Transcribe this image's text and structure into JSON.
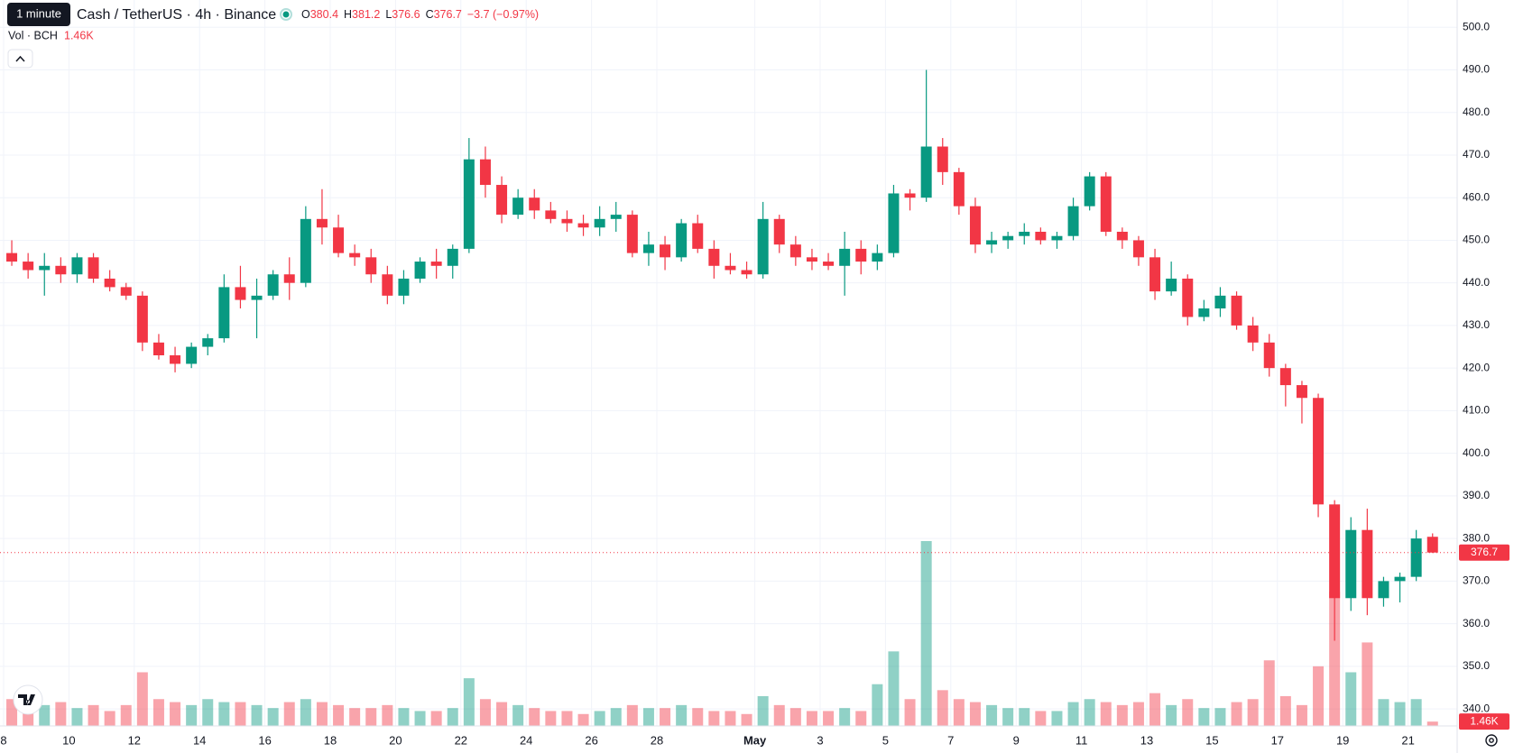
{
  "header": {
    "tooltip": "1 minute",
    "symbol": "Cash / TetherUS · 4h · Binance",
    "ohlc_labels": [
      "O",
      "H",
      "L",
      "C"
    ],
    "change": "−3.7 (−0.97%)",
    "volume_title": "Vol · BCH"
  },
  "chart_data": {
    "type": "candlestick",
    "up_color": "#089981",
    "down_color": "#f23645",
    "grid": true,
    "ylim": [
      336,
      506.4
    ],
    "yticks": [
      {
        "value": 340,
        "label": "340.0"
      },
      {
        "value": 350,
        "label": "350.0"
      },
      {
        "value": 360,
        "label": "360.0"
      },
      {
        "value": 370,
        "label": "370.0"
      },
      {
        "value": 380,
        "label": "380.0"
      },
      {
        "value": 390,
        "label": "390.0"
      },
      {
        "value": 400,
        "label": "400.0"
      },
      {
        "value": 410,
        "label": "410.0"
      },
      {
        "value": 420,
        "label": "420.0"
      },
      {
        "value": 430,
        "label": "430.0"
      },
      {
        "value": 440,
        "label": "440.0"
      },
      {
        "value": 450,
        "label": "450.0"
      },
      {
        "value": 460,
        "label": "460.0"
      },
      {
        "value": 470,
        "label": "470.0"
      },
      {
        "value": 480,
        "label": "480.0"
      },
      {
        "value": 490,
        "label": "490.0"
      },
      {
        "value": 500,
        "label": "500.0"
      }
    ],
    "categories": [
      "8",
      null,
      null,
      null,
      "10",
      null,
      null,
      null,
      "12",
      null,
      null,
      null,
      "14",
      null,
      null,
      null,
      "16",
      null,
      null,
      null,
      "18",
      null,
      null,
      null,
      "20",
      null,
      null,
      null,
      "22",
      null,
      null,
      null,
      "24",
      null,
      null,
      null,
      "26",
      null,
      null,
      null,
      "28",
      null,
      null,
      null,
      null,
      null,
      "May",
      null,
      null,
      null,
      "3",
      null,
      null,
      null,
      "5",
      null,
      null,
      null,
      "7",
      null,
      null,
      null,
      "9",
      null,
      null,
      null,
      "11",
      null,
      null,
      null,
      "13",
      null,
      null,
      null,
      "15",
      null,
      null,
      null,
      "17",
      null,
      null,
      null,
      "19",
      null,
      null,
      null,
      "21",
      null
    ],
    "candles": [
      [
        447,
        450,
        444,
        445
      ],
      [
        445,
        447,
        441,
        443
      ],
      [
        443,
        447,
        437,
        444
      ],
      [
        444,
        446,
        440,
        442
      ],
      [
        442,
        447,
        440,
        446
      ],
      [
        446,
        447,
        440,
        441
      ],
      [
        441,
        443,
        438,
        439
      ],
      [
        439,
        440,
        436,
        437
      ],
      [
        437,
        438,
        424,
        426
      ],
      [
        426,
        428,
        422,
        423
      ],
      [
        423,
        425,
        419,
        421
      ],
      [
        421,
        426,
        420,
        425
      ],
      [
        425,
        428,
        423,
        427
      ],
      [
        427,
        442,
        426,
        439
      ],
      [
        439,
        444,
        434,
        436
      ],
      [
        436,
        441,
        427,
        437
      ],
      [
        437,
        443,
        436,
        442
      ],
      [
        442,
        446,
        436,
        440
      ],
      [
        440,
        458,
        439,
        455
      ],
      [
        455,
        462,
        449,
        453
      ],
      [
        453,
        456,
        446,
        447
      ],
      [
        447,
        449,
        444,
        446
      ],
      [
        446,
        448,
        440,
        442
      ],
      [
        442,
        444,
        435,
        437
      ],
      [
        437,
        443,
        435,
        441
      ],
      [
        441,
        446,
        440,
        445
      ],
      [
        445,
        448,
        441,
        444
      ],
      [
        444,
        449,
        441,
        448
      ],
      [
        448,
        474,
        447,
        469
      ],
      [
        469,
        472,
        460,
        463
      ],
      [
        463,
        465,
        454,
        456
      ],
      [
        456,
        462,
        455,
        460
      ],
      [
        460,
        462,
        455,
        457
      ],
      [
        457,
        459,
        454,
        455
      ],
      [
        455,
        457,
        452,
        454
      ],
      [
        454,
        456,
        451,
        453
      ],
      [
        453,
        458,
        451,
        455
      ],
      [
        455,
        459,
        452,
        456
      ],
      [
        456,
        457,
        446,
        447
      ],
      [
        447,
        452,
        444,
        449
      ],
      [
        449,
        451,
        443,
        446
      ],
      [
        446,
        455,
        445,
        454
      ],
      [
        454,
        456,
        447,
        448
      ],
      [
        448,
        450,
        441,
        444
      ],
      [
        444,
        447,
        442,
        443
      ],
      [
        443,
        445,
        441,
        442
      ],
      [
        442,
        459,
        441,
        455
      ],
      [
        455,
        456,
        447,
        449
      ],
      [
        449,
        451,
        444,
        446
      ],
      [
        446,
        448,
        443,
        445
      ],
      [
        445,
        447,
        443,
        444
      ],
      [
        444,
        452,
        437,
        448
      ],
      [
        448,
        450,
        442,
        445
      ],
      [
        445,
        449,
        443,
        447
      ],
      [
        447,
        463,
        446,
        461
      ],
      [
        461,
        462,
        457,
        460
      ],
      [
        460,
        490,
        459,
        472
      ],
      [
        472,
        474,
        463,
        466
      ],
      [
        466,
        467,
        456,
        458
      ],
      [
        458,
        460,
        447,
        449
      ],
      [
        449,
        452,
        447,
        450
      ],
      [
        450,
        452,
        448,
        451
      ],
      [
        451,
        454,
        449,
        452
      ],
      [
        452,
        453,
        449,
        450
      ],
      [
        450,
        452,
        448,
        451
      ],
      [
        451,
        460,
        450,
        458
      ],
      [
        458,
        466,
        457,
        465
      ],
      [
        465,
        466,
        451,
        452
      ],
      [
        452,
        453,
        448,
        450
      ],
      [
        450,
        451,
        444,
        446
      ],
      [
        446,
        448,
        436,
        438
      ],
      [
        438,
        445,
        437,
        441
      ],
      [
        441,
        442,
        430,
        432
      ],
      [
        432,
        436,
        431,
        434
      ],
      [
        434,
        439,
        432,
        437
      ],
      [
        437,
        438,
        429,
        430
      ],
      [
        430,
        432,
        424,
        426
      ],
      [
        426,
        428,
        418,
        420
      ],
      [
        420,
        421,
        411,
        416
      ],
      [
        416,
        417,
        407,
        413
      ],
      [
        413,
        414,
        385,
        388
      ],
      [
        388,
        389,
        356,
        366
      ],
      [
        366,
        385,
        363,
        382
      ],
      [
        382,
        387,
        362,
        366
      ],
      [
        366,
        371,
        364,
        370
      ],
      [
        370,
        372,
        365,
        371
      ],
      [
        371,
        382,
        370,
        380
      ],
      [
        380.4,
        381.2,
        376.6,
        376.7
      ]
    ],
    "volume": {
      "values": [
        9000,
        6000,
        7000,
        8000,
        6000,
        7000,
        5000,
        7000,
        18000,
        9000,
        8000,
        7000,
        9000,
        8000,
        8000,
        7000,
        6000,
        8000,
        9000,
        8000,
        7000,
        6000,
        6000,
        7000,
        6000,
        5000,
        5000,
        6000,
        16000,
        9000,
        8000,
        7000,
        6000,
        5000,
        5000,
        4000,
        5000,
        6000,
        7000,
        6000,
        6000,
        7000,
        6000,
        5000,
        5000,
        4000,
        10000,
        7000,
        6000,
        5000,
        5000,
        6000,
        5000,
        14000,
        25000,
        9000,
        62000,
        12000,
        9000,
        8000,
        7000,
        6000,
        6000,
        5000,
        5000,
        8000,
        9000,
        8000,
        7000,
        8000,
        11000,
        7000,
        9000,
        6000,
        6000,
        8000,
        9000,
        22000,
        10000,
        7000,
        20000,
        45000,
        18000,
        28000,
        9000,
        8000,
        9000,
        1460
      ],
      "value_labels": [
        null,
        null,
        null,
        null,
        null,
        null,
        null,
        null,
        null,
        null,
        null,
        null,
        null,
        null,
        null,
        null,
        null,
        null,
        null,
        null,
        null,
        null,
        null,
        null,
        null,
        null,
        null,
        null,
        null,
        null,
        null,
        null,
        null,
        null,
        null,
        null,
        null,
        null,
        null,
        null,
        null,
        null,
        null,
        null,
        null,
        null,
        null,
        null,
        null,
        null,
        null,
        null,
        null,
        null,
        null,
        null,
        null,
        null,
        null,
        null,
        null,
        null,
        null,
        null,
        null,
        null,
        null,
        null,
        null,
        null,
        null,
        null,
        null,
        null,
        null,
        null,
        null,
        null,
        null,
        null,
        null,
        null,
        null,
        null,
        null,
        null,
        null,
        "1.46K"
      ]
    }
  }
}
